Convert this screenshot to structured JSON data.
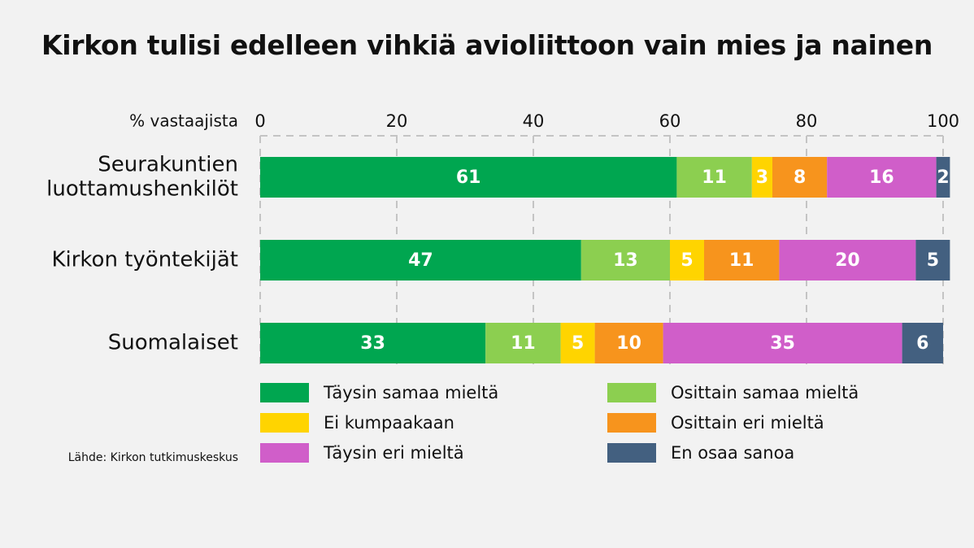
{
  "chart_data": {
    "type": "bar",
    "orientation": "horizontal",
    "stacked": true,
    "title": "Kirkon tulisi edelleen vihkiä avioliittoon vain mies ja nainen",
    "xlabel": "% vastaajista",
    "ylabel": "",
    "xlim": [
      0,
      100
    ],
    "xticks": [
      0,
      20,
      40,
      60,
      80,
      100
    ],
    "grid": true,
    "legend_position": "bottom",
    "categories": [
      [
        "Seurakuntien",
        "luottamushenkilöt"
      ],
      [
        "Kirkon työntekijät"
      ],
      [
        "Suomalaiset"
      ]
    ],
    "series": [
      {
        "name": "Täysin samaa mieltä",
        "color": "#00a650",
        "values": [
          61,
          47,
          33
        ]
      },
      {
        "name": "Osittain samaa mieltä",
        "color": "#8ccf50",
        "values": [
          11,
          13,
          11
        ]
      },
      {
        "name": "Ei kumpaakaan",
        "color": "#ffd400",
        "values": [
          3,
          5,
          5
        ]
      },
      {
        "name": "Osittain eri mieltä",
        "color": "#f7941d",
        "values": [
          8,
          11,
          10
        ]
      },
      {
        "name": "Täysin eri mieltä",
        "color": "#d05ec9",
        "values": [
          16,
          20,
          35
        ]
      },
      {
        "name": "En osaa sanoa",
        "color": "#436080",
        "values": [
          2,
          5,
          6
        ]
      }
    ],
    "source": "Lähde: Kirkon tutkimuskeskus"
  }
}
